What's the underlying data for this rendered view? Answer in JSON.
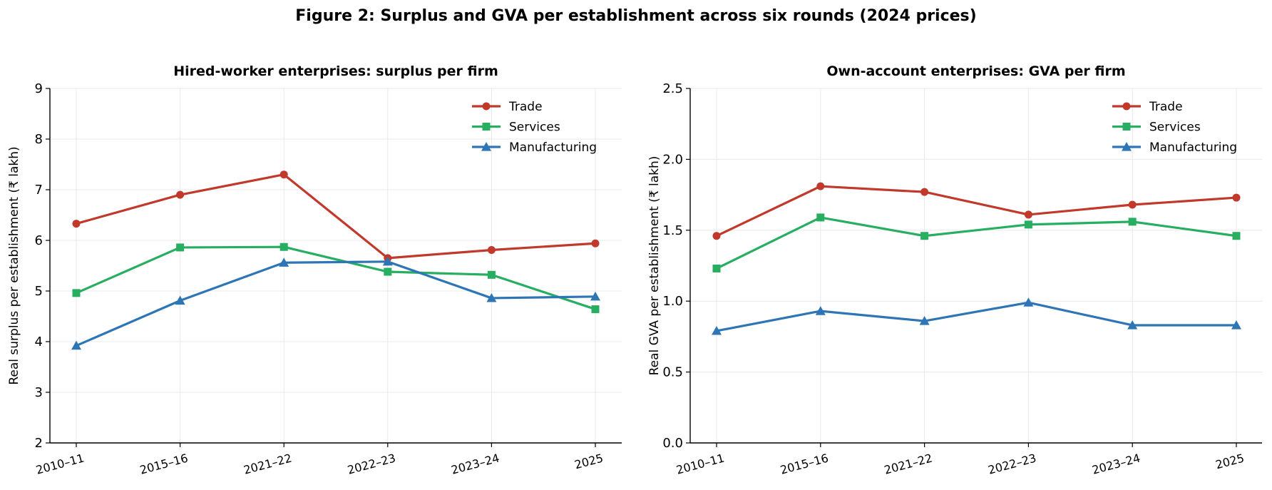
{
  "figure": {
    "title": "Figure 2: Surplus and GVA per establishment across six rounds (2024 prices)"
  },
  "colors": {
    "Trade": "#c0392b",
    "Services": "#27ae60",
    "Manufacturing": "#2e75b6",
    "grid": "#e8e8e8",
    "axis": "#000000"
  },
  "chart_data": [
    {
      "type": "line",
      "title": "Hired-worker enterprises: surplus per firm",
      "xlabel": "",
      "ylabel": "Real surplus per establishment (₹ lakh)",
      "categories": [
        "2010–11",
        "2015–16",
        "2021–22",
        "2022–23",
        "2023–24",
        "2025"
      ],
      "ylim": [
        2,
        9
      ],
      "yticks": [
        2,
        3,
        4,
        5,
        6,
        7,
        8,
        9
      ],
      "ytick_labels": [
        "2",
        "3",
        "4",
        "5",
        "6",
        "7",
        "8",
        "9"
      ],
      "grid": true,
      "legend": "top-right",
      "series": [
        {
          "name": "Trade",
          "marker": "circle",
          "values": [
            6.33,
            6.9,
            7.3,
            5.65,
            5.81,
            5.94
          ]
        },
        {
          "name": "Services",
          "marker": "square",
          "values": [
            4.96,
            5.86,
            5.87,
            5.38,
            5.32,
            4.64
          ]
        },
        {
          "name": "Manufacturing",
          "marker": "triangle",
          "values": [
            3.92,
            4.81,
            5.56,
            5.58,
            4.86,
            4.89
          ]
        }
      ]
    },
    {
      "type": "line",
      "title": "Own-account enterprises: GVA per firm",
      "xlabel": "",
      "ylabel": "Real GVA per establishment (₹ lakh)",
      "categories": [
        "2010–11",
        "2015–16",
        "2021–22",
        "2022–23",
        "2023–24",
        "2025"
      ],
      "ylim": [
        0,
        2.5
      ],
      "yticks": [
        0,
        0.5,
        1.0,
        1.5,
        2.0,
        2.5
      ],
      "ytick_labels": [
        "0.0",
        "0.5",
        "1.0",
        "1.5",
        "2.0",
        "2.5"
      ],
      "grid": true,
      "legend": "top-right",
      "series": [
        {
          "name": "Trade",
          "marker": "circle",
          "values": [
            1.46,
            1.81,
            1.77,
            1.61,
            1.68,
            1.73
          ]
        },
        {
          "name": "Services",
          "marker": "square",
          "values": [
            1.23,
            1.59,
            1.46,
            1.54,
            1.56,
            1.46
          ]
        },
        {
          "name": "Manufacturing",
          "marker": "triangle",
          "values": [
            0.79,
            0.93,
            0.86,
            0.99,
            0.83,
            0.83
          ]
        }
      ]
    }
  ]
}
